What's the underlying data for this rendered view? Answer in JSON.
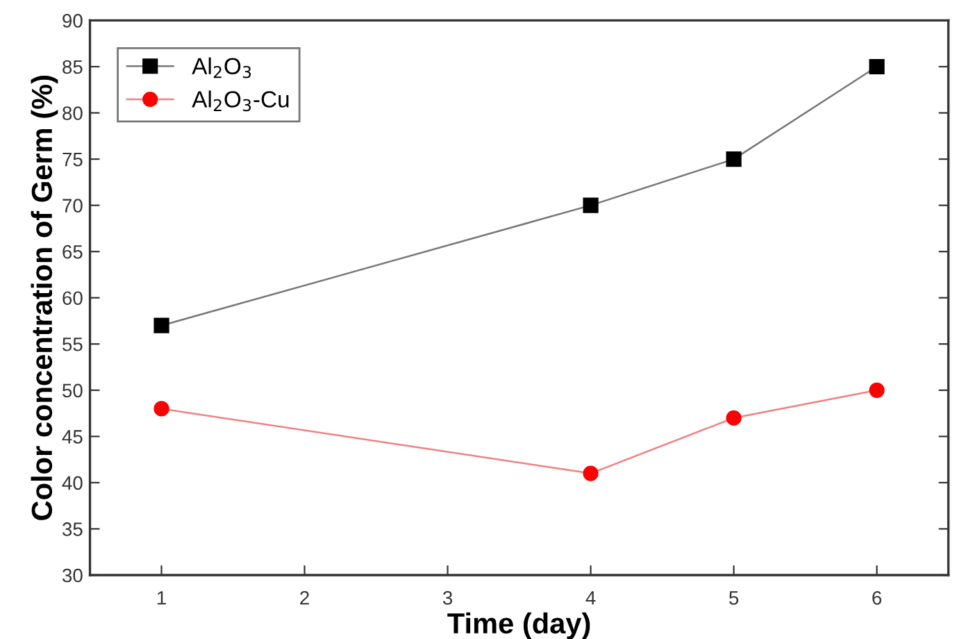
{
  "chart_data": {
    "type": "line",
    "xlabel": "Time (day)",
    "ylabel": "Color concentration of Germ (%)",
    "x": [
      1,
      4,
      5,
      6
    ],
    "xlim": [
      0.5,
      6.5
    ],
    "xticks": [
      1,
      2,
      3,
      4,
      5,
      6
    ],
    "ylim": [
      30,
      90
    ],
    "yticks": [
      30,
      35,
      40,
      45,
      50,
      55,
      60,
      65,
      70,
      75,
      80,
      85,
      90
    ],
    "legend": "top left",
    "grid": false,
    "line_style": "solid",
    "series": [
      {
        "name": "Al$_{2}$O$_{3}$",
        "color": "#000000",
        "marker": "square",
        "values": [
          57,
          70,
          75,
          85
        ]
      },
      {
        "name": "Al$_{2}$O$_{3}$-Cu",
        "color": "#ff0000",
        "marker": "circle",
        "values": [
          48,
          41,
          47,
          50
        ]
      }
    ]
  }
}
